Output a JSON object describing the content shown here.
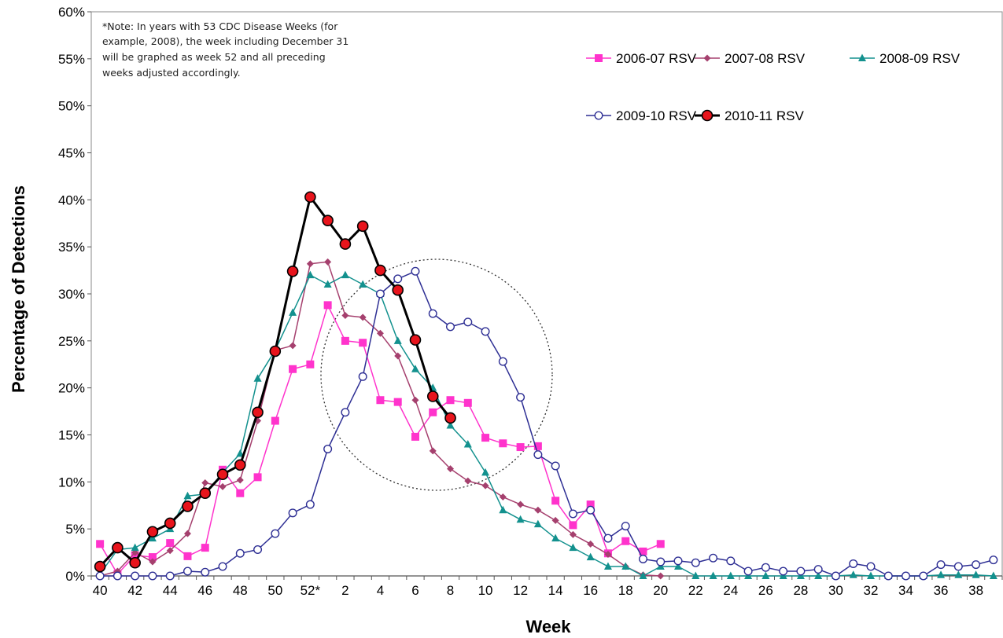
{
  "chart_data": {
    "type": "line",
    "xlabel": "Week",
    "ylabel": "Percentage of Detections",
    "ylim": [
      0,
      60
    ],
    "ytick_step": 5,
    "ytick_suffix": "%",
    "grid": false,
    "legend_position": "top-right",
    "note": [
      "*Note: In years with 53 CDC Disease Weeks (for",
      "example, 2008), the week including December 31",
      "will be graphed as week 52 and all preceding",
      "weeks adjusted accordingly."
    ],
    "weeks": [
      "40",
      "41",
      "42",
      "43",
      "44",
      "45",
      "46",
      "47",
      "48",
      "49",
      "50",
      "51",
      "52*",
      "1",
      "2",
      "3",
      "4",
      "5",
      "6",
      "7",
      "8",
      "9",
      "10",
      "11",
      "12",
      "13",
      "14",
      "15",
      "16",
      "17",
      "18",
      "19",
      "20",
      "21",
      "22",
      "23",
      "24",
      "25",
      "26",
      "27",
      "28",
      "29",
      "30",
      "31",
      "32",
      "33",
      "34",
      "35",
      "36",
      "37",
      "38",
      "39"
    ],
    "tick_labels": [
      "40",
      "42",
      "44",
      "46",
      "48",
      "50",
      "52*",
      "2",
      "4",
      "6",
      "8",
      "10",
      "12",
      "14",
      "16",
      "18",
      "20",
      "22",
      "24",
      "26",
      "28",
      "30",
      "32",
      "34",
      "36",
      "38"
    ],
    "series": [
      {
        "name": "2006-07 RSV",
        "color": "#ff33cc",
        "marker": "square",
        "width": 1.5,
        "values": [
          3.4,
          0.2,
          2.2,
          2.0,
          3.5,
          2.1,
          3.0,
          11.3,
          8.8,
          10.5,
          16.5,
          22.0,
          22.5,
          28.8,
          25.0,
          24.8,
          18.7,
          18.5,
          14.8,
          17.4,
          18.7,
          18.4,
          14.7,
          14.1,
          13.7,
          13.8,
          8.0,
          5.4,
          7.6,
          2.4,
          3.7,
          2.6,
          3.4
        ]
      },
      {
        "name": "2007-08 RSV",
        "color": "#a5406e",
        "marker": "diamond",
        "width": 1.5,
        "values": [
          0.0,
          0.5,
          2.5,
          1.5,
          2.7,
          4.5,
          9.9,
          9.5,
          10.2,
          16.5,
          24.0,
          24.5,
          33.2,
          33.4,
          27.7,
          27.5,
          25.8,
          23.4,
          18.7,
          13.3,
          11.4,
          10.1,
          9.6,
          8.4,
          7.6,
          7.0,
          5.9,
          4.4,
          3.4,
          2.3,
          1.0,
          0.1,
          0.0
        ]
      },
      {
        "name": "2008-09 RSV",
        "color": "#13918e",
        "marker": "triangle",
        "width": 1.5,
        "values": [
          0.2,
          2.8,
          3.0,
          4.0,
          5.0,
          8.5,
          8.7,
          11.0,
          13.0,
          21.0,
          24.0,
          28.0,
          32.0,
          31.0,
          32.0,
          31.0,
          30.0,
          25.0,
          22.0,
          20.0,
          16.0,
          14.0,
          11.0,
          7.0,
          6.0,
          5.5,
          4.0,
          3.0,
          2.0,
          1.0,
          1.0,
          0.0,
          1.0,
          1.0,
          0.0,
          0.0,
          0.0,
          0.0,
          0.0,
          0.0,
          0.0,
          0.0,
          0.0,
          0.1,
          0.0,
          0.0,
          0.0,
          0.0,
          0.1,
          0.1,
          0.1,
          0.0
        ]
      },
      {
        "name": "2009-10 RSV",
        "color": "#2e2f94",
        "marker": "open-circle",
        "width": 1.5,
        "values": [
          0.0,
          0.0,
          0.0,
          0.0,
          0.0,
          0.5,
          0.4,
          1.0,
          2.4,
          2.8,
          4.5,
          6.7,
          7.6,
          13.5,
          17.4,
          21.2,
          30.0,
          31.6,
          32.4,
          27.9,
          26.5,
          27.0,
          26.0,
          22.8,
          19.0,
          12.9,
          11.7,
          6.6,
          7.0,
          4.0,
          5.3,
          1.8,
          1.5,
          1.6,
          1.4,
          1.9,
          1.6,
          0.5,
          0.9,
          0.5,
          0.5,
          0.7,
          0.0,
          1.3,
          1.0,
          0.0,
          0.0,
          0.0,
          1.2,
          1.0,
          1.2,
          1.7
        ]
      },
      {
        "name": "2010-11 RSV",
        "color": "#000000",
        "marker": "red-circle",
        "width": 3,
        "values": [
          1.0,
          3.0,
          1.4,
          4.7,
          5.6,
          7.4,
          8.8,
          10.8,
          11.8,
          17.4,
          23.9,
          32.4,
          40.3,
          37.8,
          35.3,
          37.2,
          32.5,
          30.4,
          25.1,
          19.1,
          16.8
        ]
      }
    ]
  }
}
